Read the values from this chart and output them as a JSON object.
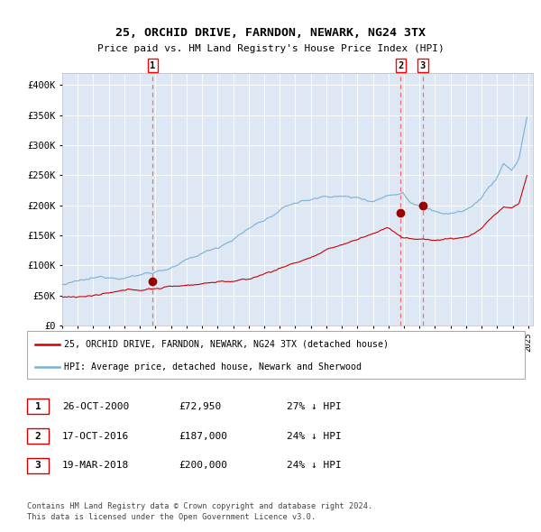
{
  "title": "25, ORCHID DRIVE, FARNDON, NEWARK, NG24 3TX",
  "subtitle": "Price paid vs. HM Land Registry's House Price Index (HPI)",
  "ylim": [
    0,
    420000
  ],
  "yticks": [
    0,
    50000,
    100000,
    150000,
    200000,
    250000,
    300000,
    350000,
    400000
  ],
  "ytick_labels": [
    "£0",
    "£50K",
    "£100K",
    "£150K",
    "£200K",
    "£250K",
    "£300K",
    "£350K",
    "£400K"
  ],
  "bg_color": "#dde8f4",
  "red_line_color": "#cc0000",
  "blue_line_color": "#7ab0d4",
  "dashed_line_color": "#ff5555",
  "sale_marker_color": "#990000",
  "trans_years": [
    2000.83,
    2016.79,
    2018.21
  ],
  "trans_prices": [
    72950,
    187000,
    200000
  ],
  "trans_labels": [
    "1",
    "2",
    "3"
  ],
  "legend_entries": [
    "25, ORCHID DRIVE, FARNDON, NEWARK, NG24 3TX (detached house)",
    "HPI: Average price, detached house, Newark and Sherwood"
  ],
  "table_rows": [
    [
      "1",
      "26-OCT-2000",
      "£72,950",
      "27% ↓ HPI"
    ],
    [
      "2",
      "17-OCT-2016",
      "£187,000",
      "24% ↓ HPI"
    ],
    [
      "3",
      "19-MAR-2018",
      "£200,000",
      "24% ↓ HPI"
    ]
  ],
  "footer": "Contains HM Land Registry data © Crown copyright and database right 2024.\nThis data is licensed under the Open Government Licence v3.0."
}
